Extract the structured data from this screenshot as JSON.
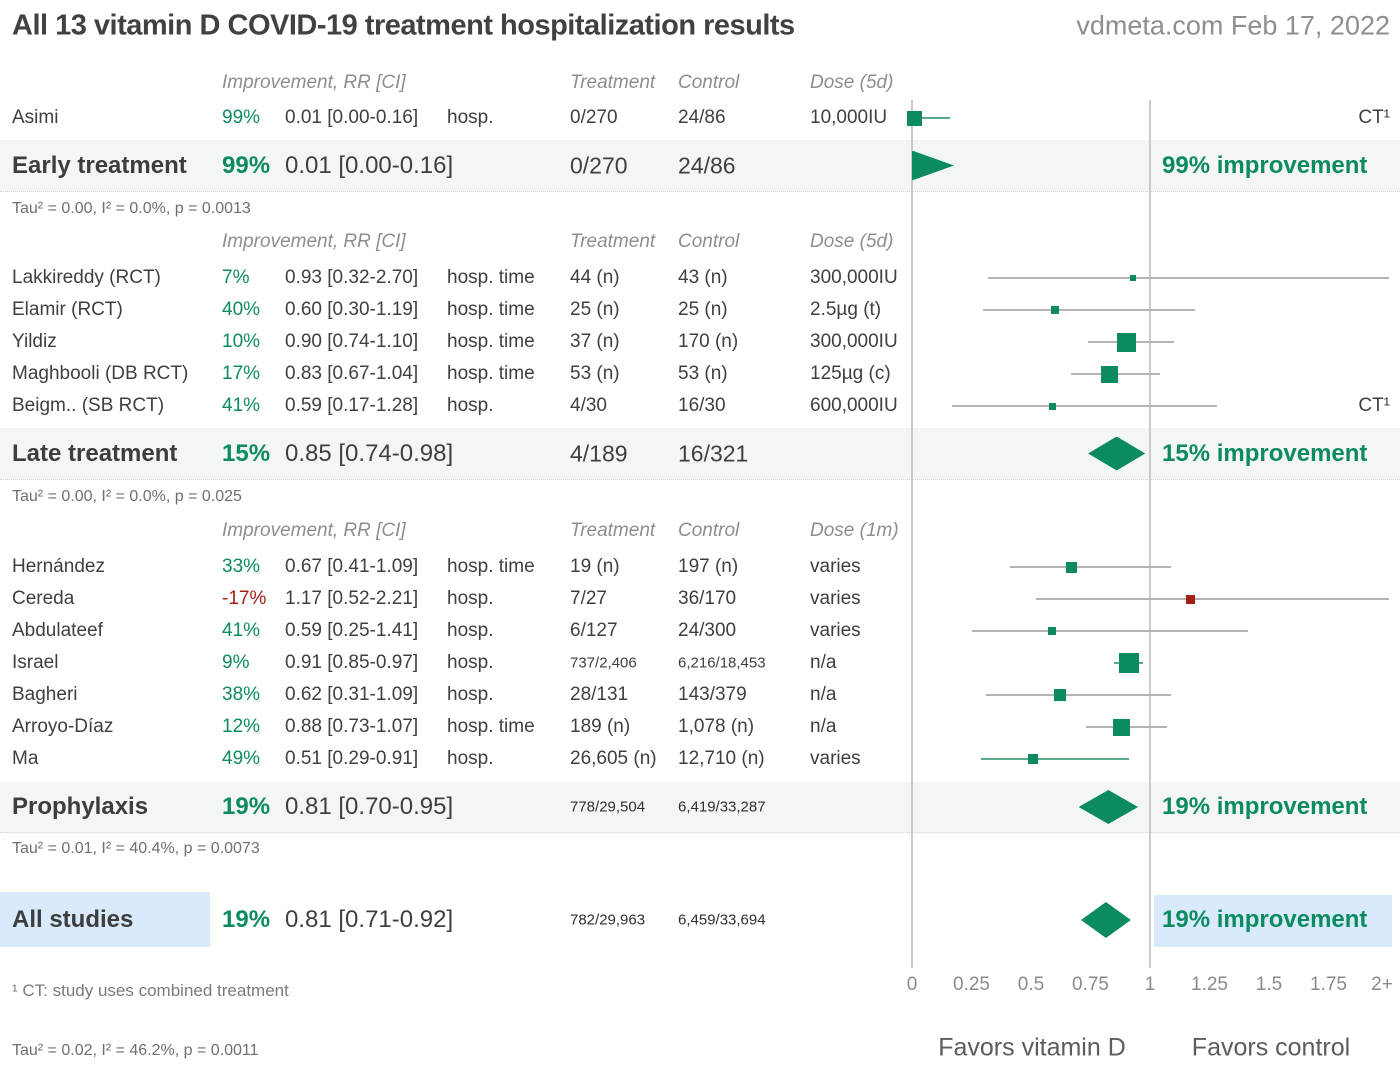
{
  "header": {
    "title": "All 13 vitamin D COVID-19 treatment hospitalization results",
    "source": "vdmeta.com Feb 17, 2022"
  },
  "columns": {
    "improvement": "Improvement, RR [CI]",
    "treatment": "Treatment",
    "control": "Control"
  },
  "colors": {
    "green": "#0d8b60",
    "red": "#a32014",
    "band": "#f3f6f2",
    "blue": "#d8eafb",
    "gray_line": "#b4b4b4",
    "green_line": "#58ab89"
  },
  "axis": {
    "ticks": [
      "0",
      "0.25",
      "0.5",
      "0.75",
      "1",
      "1.25",
      "1.5",
      "1.75",
      "2+"
    ],
    "favors_left": "Favors vitamin D",
    "favors_right": "Favors control"
  },
  "footnotes": {
    "ct": "¹ CT: study uses combined treatment",
    "tau": "Tau² = 0.02, I² = 46.2%, p = 0.0011"
  },
  "chart_data": {
    "type": "forest",
    "x_axis": {
      "min": 0,
      "max": 2,
      "clip_label": "2+",
      "scale": "linear"
    },
    "sections": [
      {
        "dose_header": "Dose (5d)",
        "studies": [
          {
            "name": "Asimi",
            "pct": "99%",
            "pct_color": "green",
            "rr": 0.01,
            "ci": [
              0.0,
              0.16
            ],
            "rr_text": "0.01 [0.00-0.16]",
            "outcome": "hosp.",
            "treatment": "0/270",
            "control": "24/86",
            "dose": "10,000IU",
            "marker_size": 15,
            "marker_color": "green",
            "line": "green",
            "note": "CT¹"
          }
        ],
        "summary": {
          "label": "Early treatment",
          "pct": "99%",
          "rr": 0.01,
          "ci": [
            0.0,
            0.16
          ],
          "rr_text": "0.01 [0.00-0.16]",
          "treatment": "0/270",
          "control": "24/86",
          "improvement": "99% improvement",
          "marker": "triangle"
        },
        "tau": "Tau² = 0.00, I² = 0.0%, p = 0.0013"
      },
      {
        "dose_header": "Dose (5d)",
        "studies": [
          {
            "name": "Lakkireddy (RCT)",
            "pct": "7%",
            "pct_color": "green",
            "rr": 0.93,
            "ci": [
              0.32,
              2.7
            ],
            "rr_text": "0.93 [0.32-2.70]",
            "outcome": "hosp. time",
            "treatment": "44 (n)",
            "control": "43 (n)",
            "dose": "300,000IU",
            "marker_size": 6,
            "marker_color": "green",
            "line": "gray"
          },
          {
            "name": "Elamir (RCT)",
            "pct": "40%",
            "pct_color": "green",
            "rr": 0.6,
            "ci": [
              0.3,
              1.19
            ],
            "rr_text": "0.60 [0.30-1.19]",
            "outcome": "hosp. time",
            "treatment": "25 (n)",
            "control": "25 (n)",
            "dose": "2.5µg (t)",
            "marker_size": 8,
            "marker_color": "green",
            "line": "gray"
          },
          {
            "name": "Yildiz",
            "pct": "10%",
            "pct_color": "green",
            "rr": 0.9,
            "ci": [
              0.74,
              1.1
            ],
            "rr_text": "0.90 [0.74-1.10]",
            "outcome": "hosp. time",
            "treatment": "37 (n)",
            "control": "170 (n)",
            "dose": "300,000IU",
            "marker_size": 19,
            "marker_color": "green",
            "line": "gray"
          },
          {
            "name": "Maghbooli (DB RCT)",
            "pct": "17%",
            "pct_color": "green",
            "rr": 0.83,
            "ci": [
              0.67,
              1.04
            ],
            "rr_text": "0.83 [0.67-1.04]",
            "outcome": "hosp. time",
            "treatment": "53 (n)",
            "control": "53 (n)",
            "dose": "125µg (c)",
            "marker_size": 17,
            "marker_color": "green",
            "line": "gray"
          },
          {
            "name": "Beigm.. (SB RCT)",
            "pct": "41%",
            "pct_color": "green",
            "rr": 0.59,
            "ci": [
              0.17,
              1.28
            ],
            "rr_text": "0.59 [0.17-1.28]",
            "outcome": "hosp.",
            "treatment": "4/30",
            "control": "16/30",
            "dose": "600,000IU",
            "marker_size": 7,
            "marker_color": "green",
            "line": "gray",
            "note": "CT¹"
          }
        ],
        "summary": {
          "label": "Late treatment",
          "pct": "15%",
          "rr": 0.85,
          "ci": [
            0.74,
            0.98
          ],
          "rr_text": "0.85 [0.74-0.98]",
          "treatment": "4/189",
          "control": "16/321",
          "improvement": "15% improvement",
          "marker": "diamond"
        },
        "tau": "Tau² = 0.00, I² = 0.0%, p = 0.025"
      },
      {
        "dose_header": "Dose (1m)",
        "studies": [
          {
            "name": "Hernández",
            "pct": "33%",
            "pct_color": "green",
            "rr": 0.67,
            "ci": [
              0.41,
              1.09
            ],
            "rr_text": "0.67 [0.41-1.09]",
            "outcome": "hosp. time",
            "treatment": "19 (n)",
            "control": "197 (n)",
            "dose": "varies",
            "marker_size": 11,
            "marker_color": "green",
            "line": "gray"
          },
          {
            "name": "Cereda",
            "pct": "-17%",
            "pct_color": "red",
            "rr": 1.17,
            "ci": [
              0.52,
              2.21
            ],
            "rr_text": "1.17 [0.52-2.21]",
            "outcome": "hosp.",
            "treatment": "7/27",
            "control": "36/170",
            "dose": "varies",
            "marker_size": 9,
            "marker_color": "red",
            "line": "gray"
          },
          {
            "name": "Abdulateef",
            "pct": "41%",
            "pct_color": "green",
            "rr": 0.59,
            "ci": [
              0.25,
              1.41
            ],
            "rr_text": "0.59 [0.25-1.41]",
            "outcome": "hosp.",
            "treatment": "6/127",
            "control": "24/300",
            "dose": "varies",
            "marker_size": 8,
            "marker_color": "green",
            "line": "gray"
          },
          {
            "name": "Israel",
            "pct": "9%",
            "pct_color": "green",
            "rr": 0.91,
            "ci": [
              0.85,
              0.97
            ],
            "rr_text": "0.91 [0.85-0.97]",
            "outcome": "hosp.",
            "treatment": "737/2,406",
            "control": "6,216/18,453",
            "dose": "n/a",
            "marker_size": 20,
            "marker_color": "green",
            "line": "green",
            "small_numbers": true
          },
          {
            "name": "Bagheri",
            "pct": "38%",
            "pct_color": "green",
            "rr": 0.62,
            "ci": [
              0.31,
              1.09
            ],
            "rr_text": "0.62 [0.31-1.09]",
            "outcome": "hosp.",
            "treatment": "28/131",
            "control": "143/379",
            "dose": "n/a",
            "marker_size": 12,
            "marker_color": "green",
            "line": "gray"
          },
          {
            "name": "Arroyo-Díaz",
            "pct": "12%",
            "pct_color": "green",
            "rr": 0.88,
            "ci": [
              0.73,
              1.07
            ],
            "rr_text": "0.88 [0.73-1.07]",
            "outcome": "hosp. time",
            "treatment": "189 (n)",
            "control": "1,078 (n)",
            "dose": "n/a",
            "marker_size": 17,
            "marker_color": "green",
            "line": "gray"
          },
          {
            "name": "Ma",
            "pct": "49%",
            "pct_color": "green",
            "rr": 0.51,
            "ci": [
              0.29,
              0.91
            ],
            "rr_text": "0.51 [0.29-0.91]",
            "outcome": "hosp.",
            "treatment": "26,605 (n)",
            "control": "12,710 (n)",
            "dose": "varies",
            "marker_size": 10,
            "marker_color": "green",
            "line": "green"
          }
        ],
        "summary": {
          "label": "Prophylaxis",
          "pct": "19%",
          "rr": 0.81,
          "ci": [
            0.7,
            0.95
          ],
          "rr_text": "0.81 [0.70-0.95]",
          "treatment": "778/29,504",
          "control": "6,419/33,287",
          "improvement": "19% improvement",
          "marker": "diamond",
          "small_numbers": true
        },
        "tau": "Tau² = 0.01, I² = 40.4%, p = 0.0073"
      }
    ],
    "overall": {
      "label": "All studies",
      "pct": "19%",
      "rr": 0.81,
      "ci": [
        0.71,
        0.92
      ],
      "rr_text": "0.81 [0.71-0.92]",
      "treatment": "782/29,963",
      "control": "6,459/33,694",
      "improvement": "19% improvement",
      "marker": "diamond",
      "small_numbers": true,
      "highlight": true
    }
  }
}
